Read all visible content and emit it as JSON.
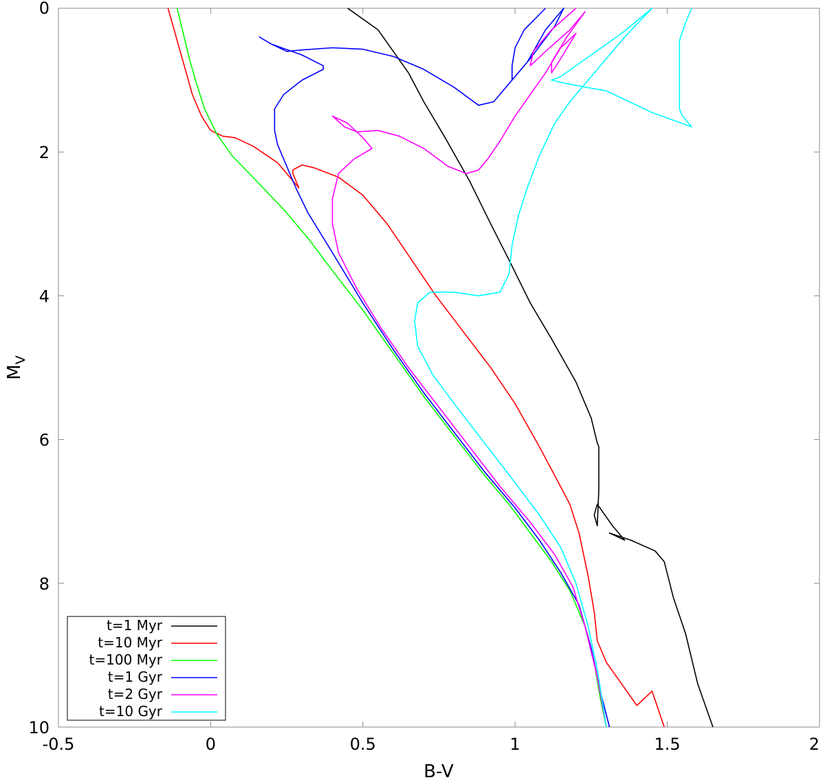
{
  "chart_data": {
    "type": "line",
    "xlabel": "B-V",
    "ylabel": {
      "main": "M",
      "sub": "V"
    },
    "xlim": [
      -0.5,
      2
    ],
    "ylim": [
      10,
      0
    ],
    "y_inverted": true,
    "x_ticks": [
      "-0.5",
      "0",
      "0.5",
      "1",
      "1.5",
      "2"
    ],
    "x_tick_values": [
      -0.5,
      0,
      0.5,
      1,
      1.5,
      2
    ],
    "y_ticks": [
      "0",
      "2",
      "4",
      "6",
      "8",
      "10"
    ],
    "y_tick_values": [
      0,
      2,
      4,
      6,
      8,
      10
    ],
    "grid": false,
    "legend_position": "bottom-left",
    "series": [
      {
        "name": "t=1 Myr",
        "color": "#000000",
        "points": [
          [
            0.45,
            0.0
          ],
          [
            0.55,
            0.3
          ],
          [
            0.6,
            0.6
          ],
          [
            0.65,
            0.9
          ],
          [
            0.7,
            1.3
          ],
          [
            0.77,
            1.8
          ],
          [
            0.85,
            2.4
          ],
          [
            0.92,
            3.0
          ],
          [
            0.98,
            3.5
          ],
          [
            1.05,
            4.1
          ],
          [
            1.12,
            4.6
          ],
          [
            1.2,
            5.2
          ],
          [
            1.22,
            5.4
          ],
          [
            1.25,
            5.7
          ],
          [
            1.27,
            6.05
          ],
          [
            1.275,
            6.1
          ],
          [
            1.275,
            6.7
          ],
          [
            1.27,
            7.2
          ],
          [
            1.26,
            7.05
          ],
          [
            1.27,
            6.9
          ],
          [
            1.32,
            7.2
          ],
          [
            1.36,
            7.4
          ],
          [
            1.31,
            7.3
          ],
          [
            1.38,
            7.4
          ],
          [
            1.46,
            7.55
          ],
          [
            1.49,
            7.7
          ],
          [
            1.52,
            8.2
          ],
          [
            1.56,
            8.7
          ],
          [
            1.6,
            9.4
          ],
          [
            1.65,
            10.0
          ]
        ]
      },
      {
        "name": "t=10 Myr",
        "color": "#ff0000",
        "points": [
          [
            -0.14,
            0.0
          ],
          [
            -0.12,
            0.3
          ],
          [
            -0.1,
            0.6
          ],
          [
            -0.08,
            0.9
          ],
          [
            -0.06,
            1.2
          ],
          [
            -0.03,
            1.5
          ],
          [
            0.0,
            1.7
          ],
          [
            0.04,
            1.78
          ],
          [
            0.08,
            1.8
          ],
          [
            0.14,
            1.92
          ],
          [
            0.22,
            2.15
          ],
          [
            0.29,
            2.5
          ],
          [
            0.27,
            2.3
          ],
          [
            0.27,
            2.25
          ],
          [
            0.3,
            2.18
          ],
          [
            0.34,
            2.22
          ],
          [
            0.42,
            2.35
          ],
          [
            0.5,
            2.6
          ],
          [
            0.58,
            3.0
          ],
          [
            0.66,
            3.5
          ],
          [
            0.74,
            4.0
          ],
          [
            0.83,
            4.5
          ],
          [
            0.92,
            5.0
          ],
          [
            1.0,
            5.5
          ],
          [
            1.08,
            6.1
          ],
          [
            1.13,
            6.5
          ],
          [
            1.18,
            6.9
          ],
          [
            1.21,
            7.3
          ],
          [
            1.24,
            7.9
          ],
          [
            1.26,
            8.4
          ],
          [
            1.27,
            8.8
          ],
          [
            1.3,
            9.1
          ],
          [
            1.35,
            9.4
          ],
          [
            1.4,
            9.7
          ],
          [
            1.45,
            9.5
          ],
          [
            1.49,
            10.0
          ]
        ]
      },
      {
        "name": "t=100 Myr",
        "color": "#00ff00",
        "points": [
          [
            -0.11,
            0.0
          ],
          [
            -0.09,
            0.35
          ],
          [
            -0.07,
            0.7
          ],
          [
            -0.05,
            1.0
          ],
          [
            -0.02,
            1.4
          ],
          [
            0.02,
            1.75
          ],
          [
            0.07,
            2.05
          ],
          [
            0.15,
            2.4
          ],
          [
            0.24,
            2.8
          ],
          [
            0.32,
            3.2
          ],
          [
            0.4,
            3.65
          ],
          [
            0.5,
            4.2
          ],
          [
            0.6,
            4.8
          ],
          [
            0.7,
            5.4
          ],
          [
            0.8,
            5.95
          ],
          [
            0.9,
            6.5
          ],
          [
            0.98,
            6.9
          ],
          [
            1.05,
            7.3
          ],
          [
            1.12,
            7.7
          ],
          [
            1.18,
            8.1
          ],
          [
            1.23,
            8.6
          ],
          [
            1.26,
            9.1
          ],
          [
            1.28,
            9.6
          ],
          [
            1.3,
            10.0
          ]
        ]
      },
      {
        "name": "t=1 Gyr",
        "color": "#0000ff",
        "points": [
          [
            1.1,
            0.0
          ],
          [
            1.03,
            0.3
          ],
          [
            1.0,
            0.55
          ],
          [
            0.99,
            0.8
          ],
          [
            0.99,
            1.0
          ],
          [
            1.04,
            0.75
          ],
          [
            1.1,
            0.3
          ],
          [
            1.16,
            0.0
          ],
          [
            1.13,
            0.25
          ],
          [
            1.05,
            0.7
          ],
          [
            0.98,
            1.05
          ],
          [
            0.93,
            1.3
          ],
          [
            0.88,
            1.35
          ],
          [
            0.8,
            1.1
          ],
          [
            0.7,
            0.85
          ],
          [
            0.6,
            0.67
          ],
          [
            0.5,
            0.57
          ],
          [
            0.4,
            0.55
          ],
          [
            0.3,
            0.58
          ],
          [
            0.25,
            0.6
          ],
          [
            0.2,
            0.5
          ],
          [
            0.16,
            0.4
          ],
          [
            0.2,
            0.5
          ],
          [
            0.3,
            0.65
          ],
          [
            0.37,
            0.8
          ],
          [
            0.37,
            0.85
          ],
          [
            0.3,
            1.0
          ],
          [
            0.24,
            1.2
          ],
          [
            0.21,
            1.4
          ],
          [
            0.21,
            1.7
          ],
          [
            0.22,
            1.9
          ],
          [
            0.25,
            2.2
          ],
          [
            0.28,
            2.5
          ],
          [
            0.32,
            2.85
          ],
          [
            0.4,
            3.4
          ],
          [
            0.5,
            4.1
          ],
          [
            0.6,
            4.75
          ],
          [
            0.7,
            5.35
          ],
          [
            0.8,
            5.9
          ],
          [
            0.9,
            6.45
          ],
          [
            1.0,
            6.95
          ],
          [
            1.08,
            7.4
          ],
          [
            1.15,
            7.85
          ],
          [
            1.21,
            8.3
          ],
          [
            1.25,
            8.9
          ],
          [
            1.28,
            9.5
          ],
          [
            1.31,
            10.0
          ]
        ]
      },
      {
        "name": "t=2 Gyr",
        "color": "#ff00ff",
        "points": [
          [
            1.2,
            0.0
          ],
          [
            1.12,
            0.3
          ],
          [
            1.06,
            0.6
          ],
          [
            1.05,
            0.8
          ],
          [
            1.1,
            0.6
          ],
          [
            1.18,
            0.3
          ],
          [
            1.23,
            0.05
          ],
          [
            1.17,
            0.4
          ],
          [
            1.12,
            0.75
          ],
          [
            1.12,
            0.9
          ],
          [
            1.15,
            0.7
          ],
          [
            1.2,
            0.35
          ],
          [
            1.15,
            0.55
          ],
          [
            1.1,
            0.9
          ],
          [
            1.05,
            1.2
          ],
          [
            1.0,
            1.5
          ],
          [
            0.95,
            1.85
          ],
          [
            0.91,
            2.1
          ],
          [
            0.88,
            2.25
          ],
          [
            0.84,
            2.3
          ],
          [
            0.78,
            2.2
          ],
          [
            0.7,
            1.95
          ],
          [
            0.62,
            1.78
          ],
          [
            0.55,
            1.7
          ],
          [
            0.48,
            1.72
          ],
          [
            0.44,
            1.65
          ],
          [
            0.4,
            1.5
          ],
          [
            0.45,
            1.6
          ],
          [
            0.5,
            1.8
          ],
          [
            0.53,
            1.95
          ],
          [
            0.47,
            2.1
          ],
          [
            0.42,
            2.3
          ],
          [
            0.4,
            2.65
          ],
          [
            0.4,
            3.0
          ],
          [
            0.42,
            3.4
          ],
          [
            0.48,
            3.9
          ],
          [
            0.56,
            4.45
          ],
          [
            0.65,
            5.0
          ],
          [
            0.75,
            5.55
          ],
          [
            0.85,
            6.1
          ],
          [
            0.95,
            6.65
          ],
          [
            1.05,
            7.15
          ],
          [
            1.13,
            7.6
          ],
          [
            1.19,
            8.05
          ],
          [
            1.23,
            8.6
          ],
          [
            1.27,
            9.3
          ],
          [
            1.3,
            10.0
          ]
        ]
      },
      {
        "name": "t=10 Gyr",
        "color": "#00ffff",
        "points": [
          [
            1.58,
            0.0
          ],
          [
            1.56,
            0.2
          ],
          [
            1.54,
            0.45
          ],
          [
            1.54,
            0.8
          ],
          [
            1.54,
            1.1
          ],
          [
            1.54,
            1.4
          ],
          [
            1.55,
            1.5
          ],
          [
            1.58,
            1.65
          ],
          [
            1.45,
            1.45
          ],
          [
            1.3,
            1.15
          ],
          [
            1.17,
            1.05
          ],
          [
            1.12,
            1.0
          ],
          [
            1.15,
            0.95
          ],
          [
            1.25,
            0.65
          ],
          [
            1.35,
            0.35
          ],
          [
            1.45,
            0.0
          ],
          [
            1.36,
            0.4
          ],
          [
            1.25,
            0.95
          ],
          [
            1.18,
            1.3
          ],
          [
            1.13,
            1.6
          ],
          [
            1.08,
            2.05
          ],
          [
            1.04,
            2.5
          ],
          [
            1.01,
            2.9
          ],
          [
            0.99,
            3.3
          ],
          [
            0.98,
            3.7
          ],
          [
            0.95,
            3.95
          ],
          [
            0.88,
            4.0
          ],
          [
            0.8,
            3.95
          ],
          [
            0.72,
            3.95
          ],
          [
            0.68,
            4.1
          ],
          [
            0.67,
            4.35
          ],
          [
            0.68,
            4.7
          ],
          [
            0.73,
            5.1
          ],
          [
            0.8,
            5.5
          ],
          [
            0.9,
            6.05
          ],
          [
            1.0,
            6.6
          ],
          [
            1.08,
            7.05
          ],
          [
            1.15,
            7.5
          ],
          [
            1.2,
            8.0
          ],
          [
            1.24,
            8.6
          ],
          [
            1.27,
            9.2
          ],
          [
            1.3,
            10.0
          ]
        ]
      }
    ]
  }
}
